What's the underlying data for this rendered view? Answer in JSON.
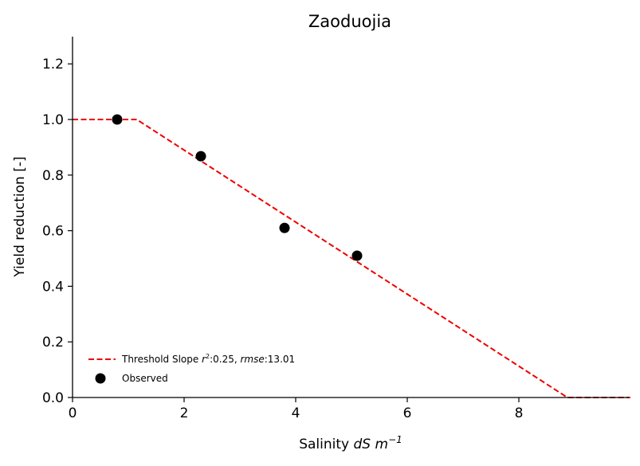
{
  "chart_data": {
    "type": "line",
    "title": "Zaoduojia",
    "xlabel": "Salinity",
    "xlabel_units": "dS m",
    "xlabel_exponent": "−1",
    "ylabel": "Yield reduction [-]",
    "xlim": [
      0,
      10
    ],
    "ylim": [
      0,
      1.3
    ],
    "xticks": [
      0,
      2,
      4,
      6,
      8
    ],
    "xtick_labels": [
      "0",
      "2",
      "4",
      "6",
      "8"
    ],
    "yticks": [
      0.0,
      0.2,
      0.4,
      0.6,
      0.8,
      1.0,
      1.2
    ],
    "ytick_labels": [
      "0.0",
      "0.2",
      "0.4",
      "0.6",
      "0.8",
      "1.0",
      "1.2"
    ],
    "grid": false,
    "legend_position": "lower-left",
    "series": [
      {
        "name": "Threshold Slope r²:0.25, rmse:13.01",
        "type": "line",
        "style": "dashed",
        "color": "#ee0000",
        "x": [
          0,
          1.15,
          8.87,
          10
        ],
        "y": [
          1.0,
          1.0,
          0.0,
          0.0
        ]
      },
      {
        "name": "Observed",
        "type": "scatter",
        "color": "#000000",
        "x": [
          0.8,
          2.3,
          3.8,
          5.1
        ],
        "y": [
          1.0,
          0.868,
          0.61,
          0.51
        ]
      }
    ],
    "legend": {
      "line_label_prefix": "Threshold Slope ",
      "r_symbol": "r",
      "r_sup": "2",
      "r_value": ":0.25, ",
      "rmse_symbol": "rmse",
      "rmse_value": ":13.01",
      "scatter_label": "Observed"
    }
  }
}
